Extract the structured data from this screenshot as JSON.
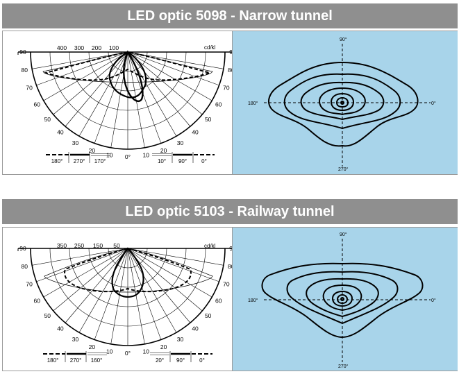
{
  "sections": [
    {
      "title": "LED optic 5098 - Narrow tunnel",
      "polar_diagram": {
        "unit": "cd/kl",
        "scale_labels": [
          "400",
          "300",
          "200",
          "100"
        ],
        "angle_labels": [
          "90",
          "80",
          "70",
          "60",
          "50",
          "40",
          "30",
          "20",
          "10",
          "0°"
        ],
        "legend_left": [
          "180°",
          "270°",
          "170°"
        ],
        "legend_right": [
          "10°",
          "90°",
          "0°"
        ]
      },
      "isolux_diagram": {
        "axis_labels": {
          "top": "90°",
          "bottom": "270°",
          "left": "180°",
          "right": "0°"
        }
      }
    },
    {
      "title": "LED optic 5103 - Railway tunnel",
      "polar_diagram": {
        "unit": "cd/kl",
        "scale_labels": [
          "350",
          "250",
          "150",
          "50"
        ],
        "angle_labels": [
          "90",
          "80",
          "70",
          "60",
          "50",
          "40",
          "30",
          "20",
          "10",
          "0°"
        ],
        "legend_left": [
          "180°",
          "270°",
          "160°"
        ],
        "legend_right": [
          "20°",
          "90°",
          "0°"
        ]
      },
      "isolux_diagram": {
        "axis_labels": {
          "top": "90°",
          "bottom": "270°",
          "left": "180°",
          "right": "0°"
        }
      }
    }
  ]
}
